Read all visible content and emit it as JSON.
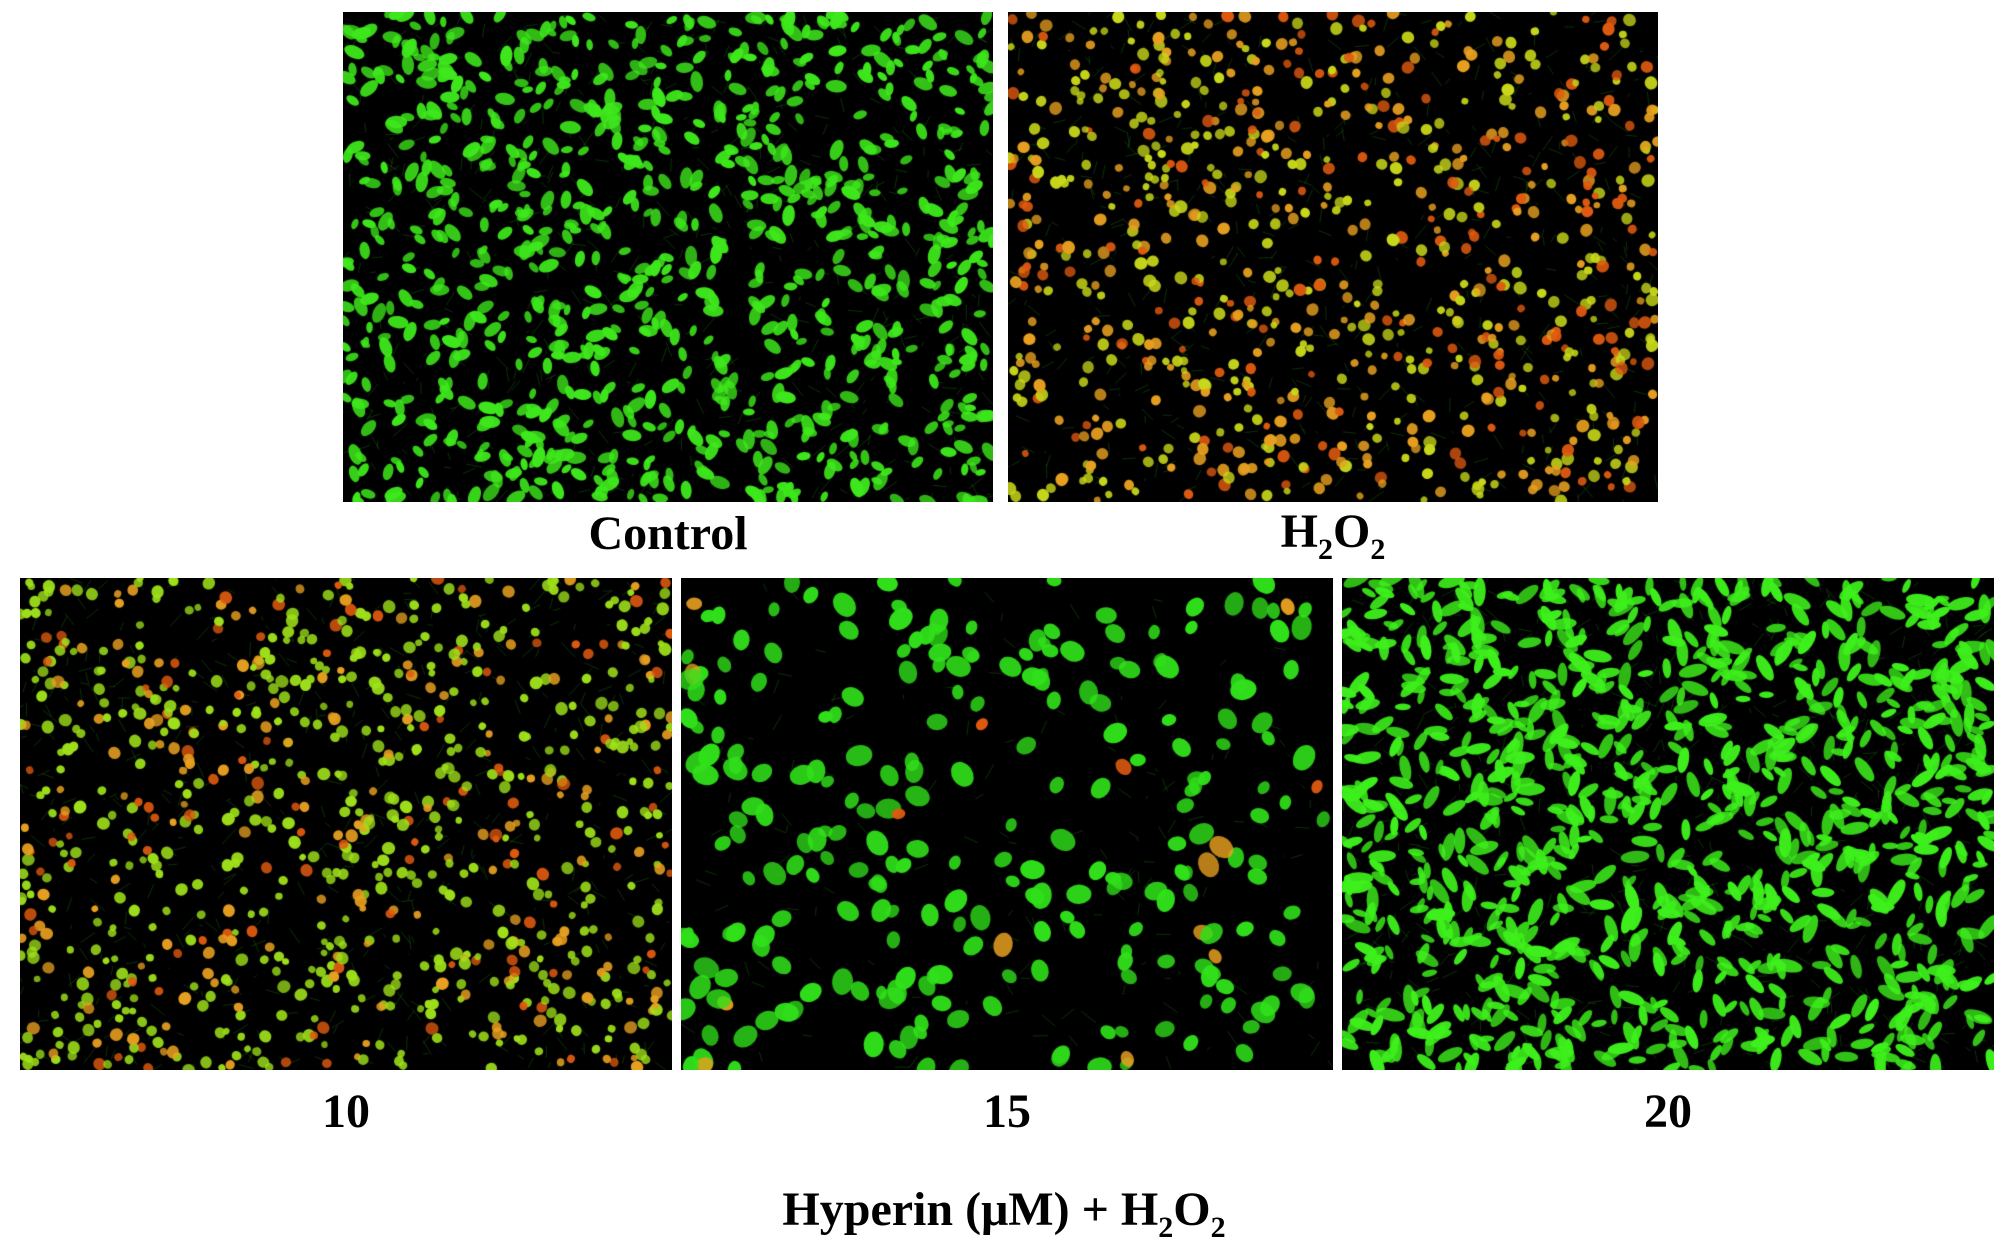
{
  "panels": [
    {
      "id": "control",
      "label": "Control",
      "cell_color": "#3ee81c",
      "dead_fraction": 0.0,
      "cell_count": 900,
      "cell_size": 6,
      "elongation": 1.6
    },
    {
      "id": "h2o2",
      "label_base_1": "H",
      "label_sub_1": "2",
      "label_base_2": "O",
      "label_sub_2": "2",
      "cell_color": "#c8d81a",
      "dead_fraction": 0.55,
      "cell_count": 800,
      "cell_size": 6,
      "elongation": 1.0
    },
    {
      "id": "c10",
      "label": "10",
      "cell_color": "#9ee01a",
      "dead_fraction": 0.35,
      "cell_count": 850,
      "cell_size": 6,
      "elongation": 1.0
    },
    {
      "id": "c15",
      "label": "15",
      "cell_color": "#30e01a",
      "dead_fraction": 0.08,
      "cell_count": 260,
      "cell_size": 10,
      "elongation": 1.2
    },
    {
      "id": "c20",
      "label": "20",
      "cell_color": "#3ef01c",
      "dead_fraction": 0.0,
      "cell_count": 1000,
      "cell_size": 6,
      "elongation": 2.2
    }
  ],
  "axis_label": {
    "prefix": "Hyperin (μM) + H",
    "sub_1": "2",
    "mid": "O",
    "sub_2": "2"
  },
  "colors": {
    "background": "#000000",
    "live_green": "#3ee81c",
    "dead_orange": "#e8a020",
    "dead_red": "#e05a10"
  }
}
